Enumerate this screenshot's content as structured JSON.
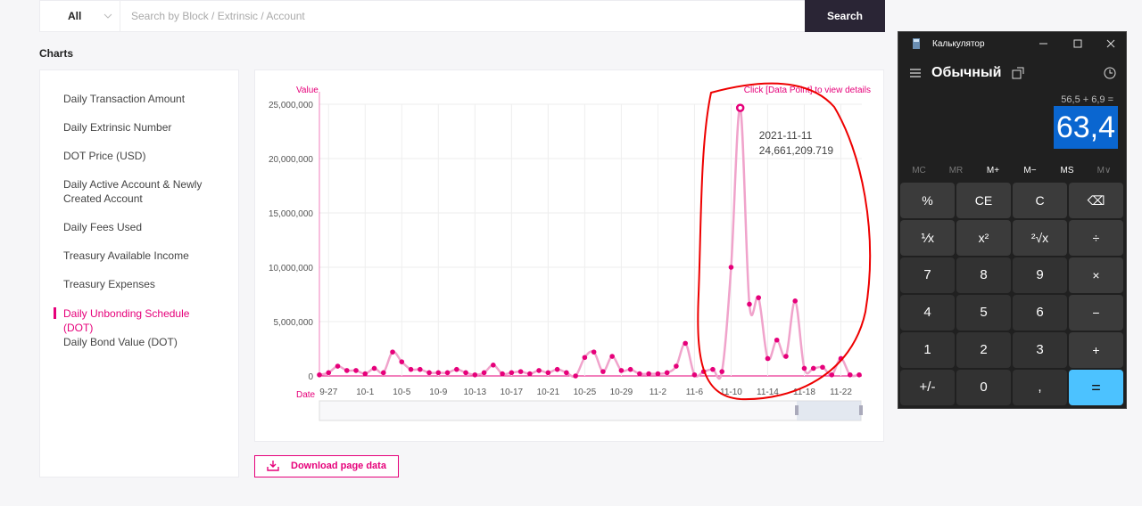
{
  "search": {
    "filter": "All",
    "placeholder": "Search by Block / Extrinsic / Account",
    "button": "Search"
  },
  "section_title": "Charts",
  "menu": {
    "items": [
      "Daily Transaction Amount",
      "Daily Extrinsic Number",
      "DOT Price (USD)",
      "Daily Active Account & Newly Created Account",
      "Daily Fees Used",
      "Treasury Available Income",
      "Treasury Expenses",
      "Daily Unbonding Schedule (DOT)",
      "Daily Bond Value (DOT)"
    ],
    "active": 7
  },
  "download_button": "Download page data",
  "chart_data": {
    "type": "line",
    "y_label": "Value",
    "x_label": "Date",
    "hint": "Click [Data Point] to view details",
    "categories": [
      null,
      "9-27",
      null,
      null,
      null,
      "10-1",
      null,
      null,
      null,
      "10-5",
      null,
      null,
      null,
      "10-9",
      null,
      null,
      null,
      "10-13",
      null,
      null,
      null,
      "10-17",
      null,
      null,
      null,
      "10-21",
      null,
      null,
      null,
      "10-25",
      null,
      null,
      null,
      "10-29",
      null,
      null,
      null,
      "11-2",
      null,
      null,
      null,
      "11-6",
      null,
      null,
      null,
      "11-10",
      null,
      null,
      null,
      "11-14",
      null,
      null,
      null,
      "11-18",
      null,
      null,
      null,
      "11-22",
      null,
      null
    ],
    "series": [
      {
        "name": "Value",
        "color": "#e6007a",
        "line_color": "#f0a3cb",
        "values": [
          100000,
          300000,
          900000,
          500000,
          500000,
          200000,
          700000,
          300000,
          2200000,
          1300000,
          600000,
          600000,
          300000,
          300000,
          300000,
          600000,
          300000,
          100000,
          300000,
          1000000,
          200000,
          300000,
          400000,
          200000,
          500000,
          300000,
          600000,
          300000,
          0,
          1700000,
          2200000,
          400000,
          1800000,
          500000,
          600000,
          200000,
          200000,
          200000,
          300000,
          900000,
          3000000,
          100000,
          400000,
          600000,
          400000,
          10000000,
          24661209.719,
          6600000,
          7200000,
          1600000,
          3300000,
          1800000,
          6900000,
          700000,
          700000,
          800000,
          100000,
          1600000,
          100000,
          100000
        ]
      }
    ],
    "ylim": [
      0,
      25000000
    ],
    "yticks": [
      0,
      {
        "value": 5000000,
        "label": "5,000,000"
      },
      {
        "value": 10000000,
        "label": "10,000,000"
      },
      {
        "value": 15000000,
        "label": "15,000,000"
      },
      {
        "value": 20000000,
        "label": "20,000,000"
      },
      {
        "value": 25000000,
        "label": "25,000,000"
      }
    ],
    "grid": true,
    "tooltip": {
      "index": 46,
      "date": "2021-11-11",
      "value_label": "24,661,209.719"
    }
  },
  "calculator": {
    "title": "Калькулятор",
    "mode": "Обычный",
    "expression": "56,5 + 6,9 =",
    "display": "63,4",
    "memory": [
      "MC",
      "MR",
      "M+",
      "M−",
      "MS",
      "M∨"
    ],
    "keys": [
      [
        "%",
        "CE",
        "C",
        "⌫"
      ],
      [
        "⅟x",
        "x²",
        "²√x",
        "÷"
      ],
      [
        "7",
        "8",
        "9",
        "×"
      ],
      [
        "4",
        "5",
        "6",
        "−"
      ],
      [
        "1",
        "2",
        "3",
        "+"
      ],
      [
        "+/-",
        "0",
        ",",
        "="
      ]
    ]
  }
}
